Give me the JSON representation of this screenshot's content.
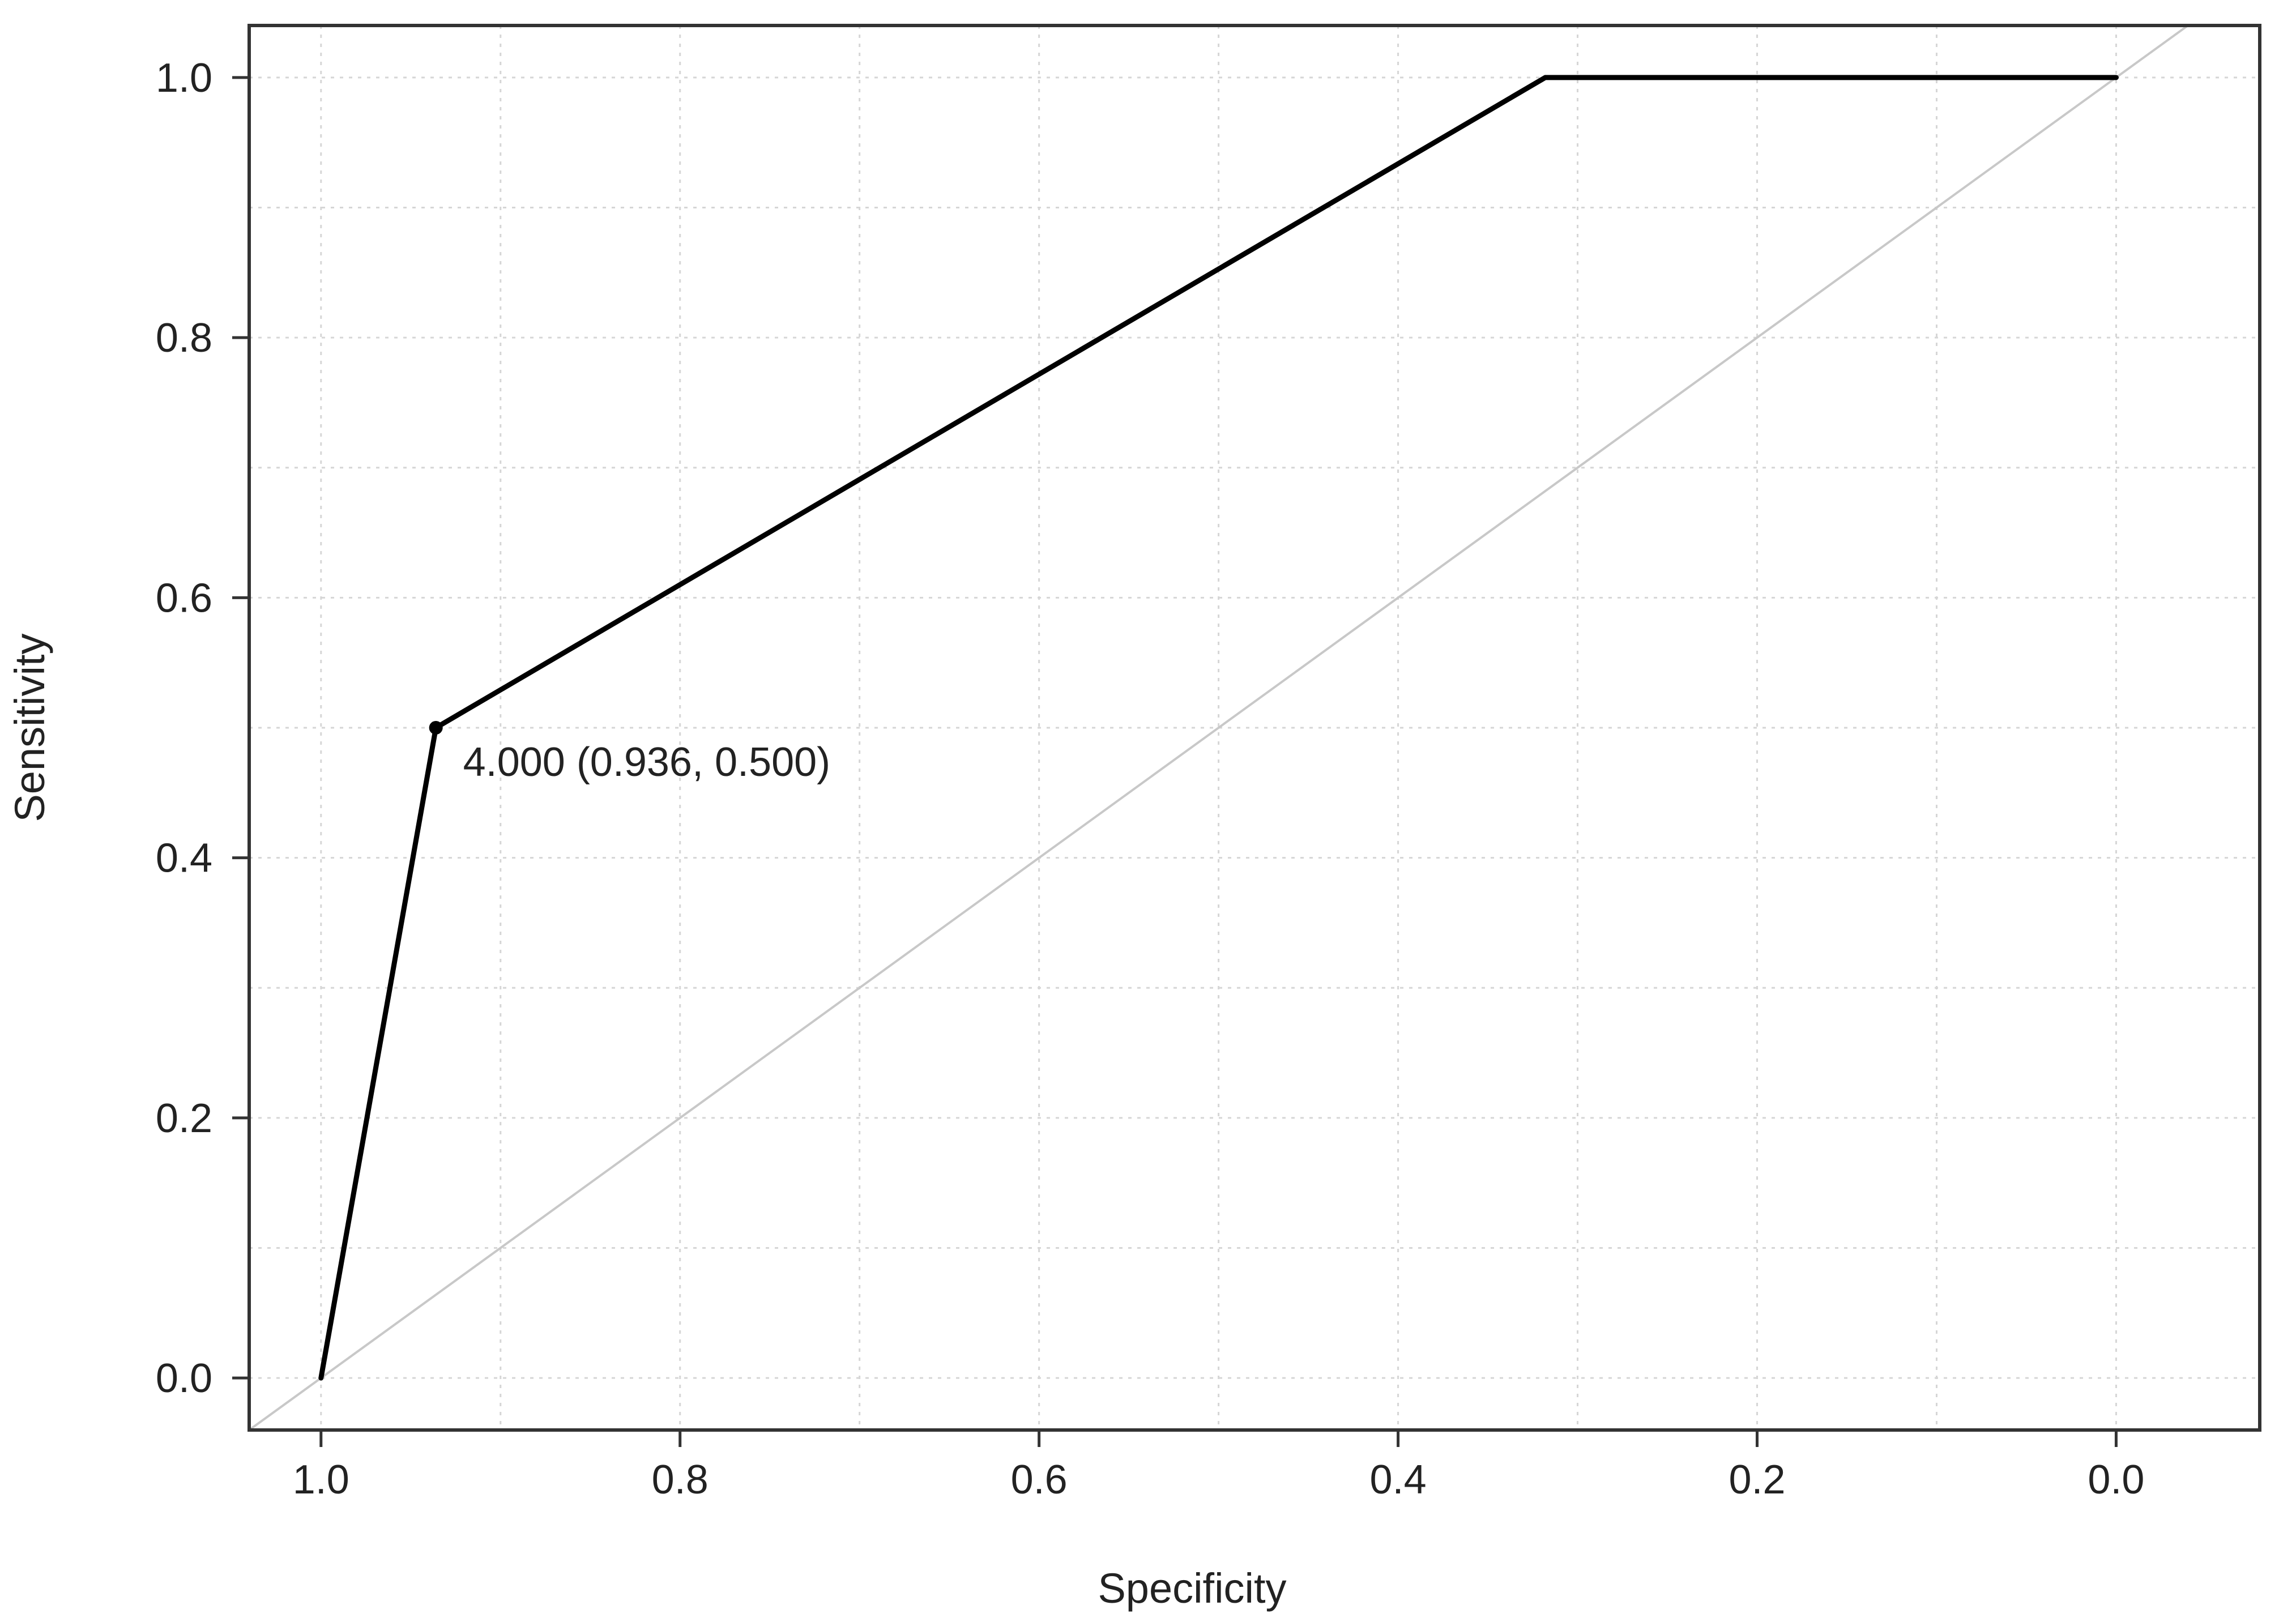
{
  "chart_data": {
    "type": "line",
    "title": "",
    "xlabel": "Specificity",
    "ylabel": "Sensitivity",
    "x_reversed": true,
    "xlim": [
      1.04,
      -0.08
    ],
    "ylim": [
      -0.04,
      1.04
    ],
    "xticks": [
      "1.0",
      "0.8",
      "0.6",
      "0.4",
      "0.2",
      "0.0"
    ],
    "xtick_values": [
      1.0,
      0.8,
      0.6,
      0.4,
      0.2,
      0.0
    ],
    "yticks": [
      "0.0",
      "0.2",
      "0.4",
      "0.6",
      "0.8",
      "1.0"
    ],
    "ytick_values": [
      0.0,
      0.2,
      0.4,
      0.6,
      0.8,
      1.0
    ],
    "grid": true,
    "grid_style": "dotted",
    "series": [
      {
        "x": [
          1.0,
          0.936,
          0.318,
          0.0
        ],
        "y": [
          0.0,
          0.5,
          1.0,
          1.0
        ],
        "color": "#000000"
      }
    ],
    "reference_line": {
      "x": [
        1.0,
        0.0
      ],
      "y": [
        0.0,
        1.0
      ],
      "color": "#c8c8c8"
    },
    "annotations": [
      {
        "x": 0.936,
        "y": 0.5,
        "text": "4.000 (0.936, 0.500)"
      }
    ]
  }
}
